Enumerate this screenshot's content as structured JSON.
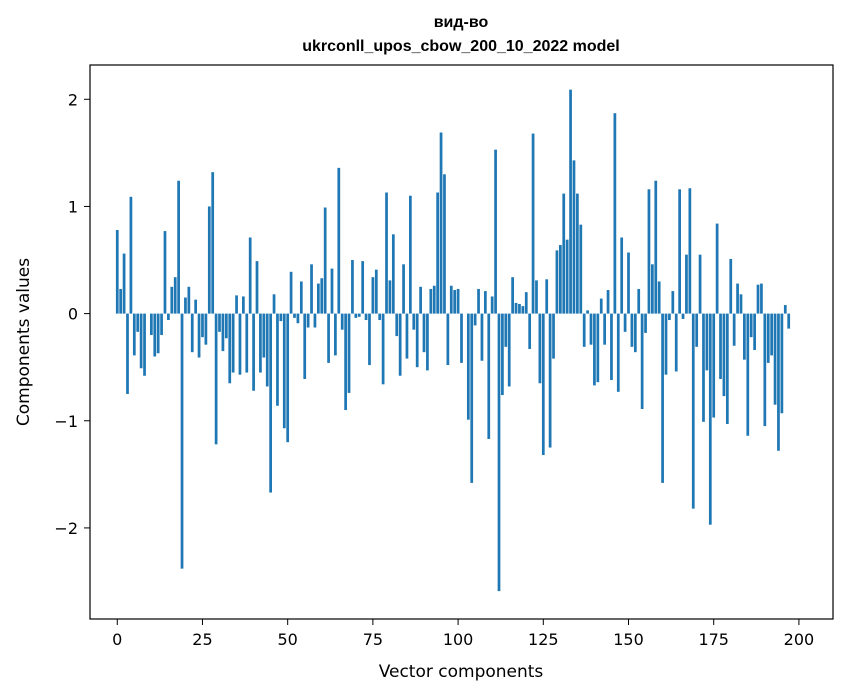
{
  "chart_data": {
    "type": "bar",
    "title_line1": "вид-во",
    "title_line2": "ukrconll_upos_cbow_200_10_2022 model",
    "xlabel": "Vector components",
    "ylabel": "Components values",
    "xlim": [
      -8,
      210
    ],
    "ylim": [
      -2.85,
      2.32
    ],
    "xticks": [
      0,
      25,
      50,
      75,
      100,
      125,
      150,
      175,
      200
    ],
    "xtick_labels": [
      "0",
      "25",
      "50",
      "75",
      "100",
      "125",
      "150",
      "175",
      "200"
    ],
    "yticks": [
      2,
      1,
      0,
      -1,
      -2
    ],
    "ytick_labels": [
      "2",
      "1",
      "0",
      "−1",
      "−2"
    ],
    "bar_color": "#1f77b4",
    "values": [
      0.78,
      0.23,
      0.56,
      -0.75,
      1.09,
      -0.39,
      -0.17,
      -0.51,
      -0.58,
      0.0,
      -0.2,
      -0.4,
      -0.37,
      -0.2,
      0.77,
      -0.06,
      0.25,
      0.34,
      1.24,
      -2.38,
      0.15,
      0.25,
      -0.36,
      0.13,
      -0.41,
      -0.22,
      -0.29,
      1.0,
      1.32,
      -1.22,
      -0.17,
      -0.35,
      -0.23,
      -0.65,
      -0.55,
      0.17,
      -0.57,
      0.16,
      -0.55,
      0.71,
      -0.72,
      0.49,
      -0.55,
      -0.41,
      -0.68,
      -1.67,
      0.18,
      -0.86,
      -0.07,
      -1.07,
      -1.2,
      0.39,
      -0.04,
      -0.09,
      0.3,
      -0.61,
      -0.13,
      0.46,
      -0.13,
      0.28,
      0.33,
      0.99,
      -0.46,
      0.42,
      -0.39,
      1.36,
      -0.15,
      -0.9,
      -0.74,
      0.5,
      -0.04,
      -0.03,
      0.49,
      -0.06,
      -0.48,
      0.34,
      0.41,
      -0.06,
      -0.66,
      1.13,
      0.31,
      0.74,
      -0.21,
      -0.58,
      0.46,
      -0.42,
      1.1,
      -0.15,
      -0.5,
      0.25,
      -0.36,
      -0.53,
      0.23,
      0.26,
      1.13,
      1.69,
      1.3,
      -0.48,
      0.26,
      0.22,
      0.23,
      -0.46,
      0.0,
      -0.99,
      -1.58,
      -0.11,
      0.23,
      -0.44,
      0.21,
      -1.17,
      0.16,
      1.53,
      -2.59,
      -0.76,
      -0.31,
      -0.68,
      0.34,
      0.1,
      0.09,
      0.07,
      0.2,
      -0.33,
      1.68,
      0.31,
      -0.65,
      -1.32,
      0.32,
      -1.25,
      -0.42,
      0.59,
      0.64,
      1.12,
      0.69,
      2.09,
      1.43,
      1.12,
      0.83,
      -0.31,
      0.03,
      -0.29,
      -0.67,
      -0.64,
      0.14,
      -0.29,
      0.22,
      -0.62,
      1.87,
      -0.73,
      0.71,
      -0.17,
      0.57,
      -0.31,
      -0.36,
      0.23,
      -0.89,
      -0.18,
      1.16,
      0.46,
      1.24,
      0.3,
      -1.58,
      -0.57,
      -0.06,
      0.21,
      -0.54,
      1.16,
      -0.05,
      0.55,
      1.17,
      -1.82,
      -0.31,
      0.55,
      -1.01,
      -0.53,
      -1.97,
      -0.97,
      0.84,
      -0.61,
      -0.77,
      -1.03,
      0.51,
      -0.3,
      0.28,
      0.18,
      -0.43,
      -1.14,
      -0.22,
      -0.34,
      0.27,
      0.28,
      -1.05,
      -0.46,
      -0.39,
      -0.85,
      -1.28,
      -0.93,
      0.08,
      -0.14
    ]
  }
}
